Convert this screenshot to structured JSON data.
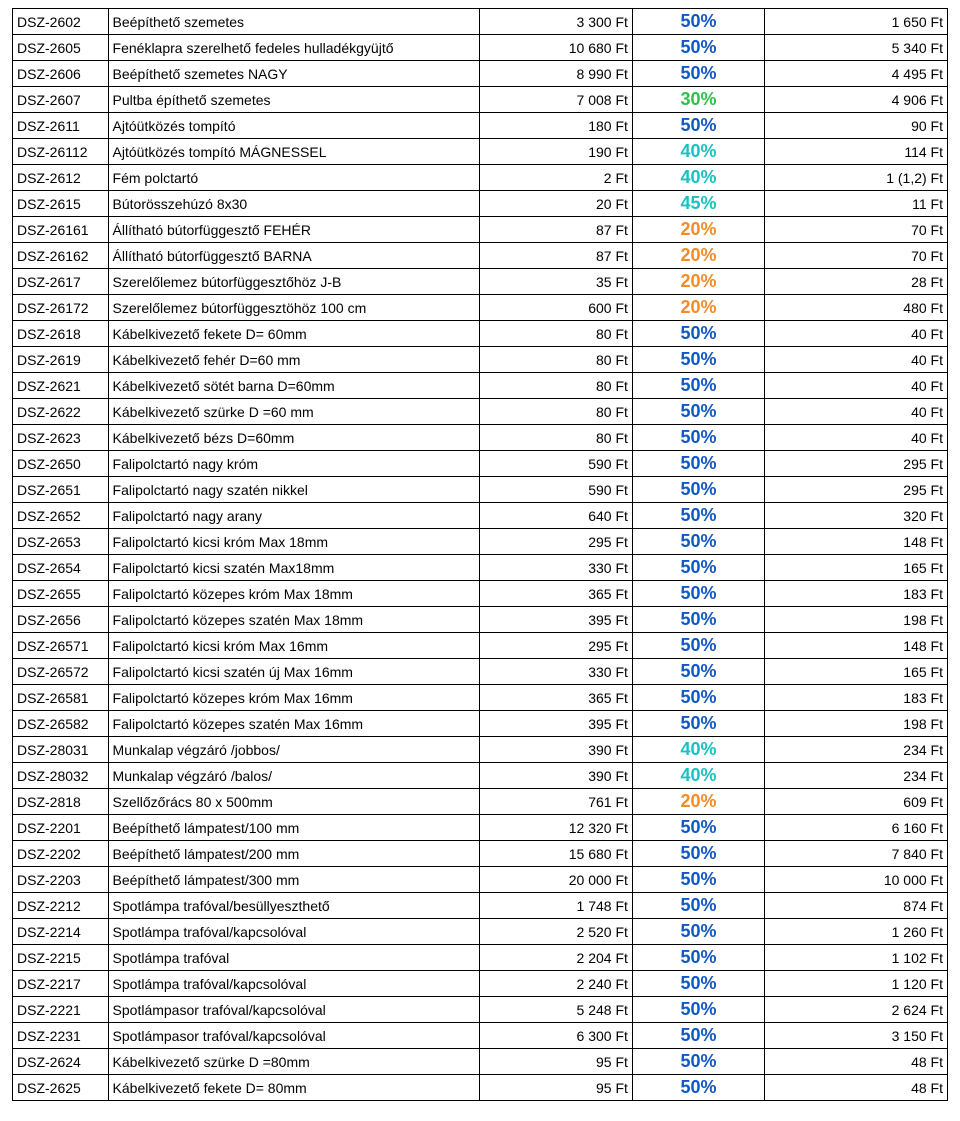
{
  "table": {
    "colors": {
      "text": "#000000",
      "pct_50": "#1058c2",
      "pct_30": "#2ec24a",
      "pct_40": "#19c2c2",
      "pct_45": "#19c2c2",
      "pct_20": "#f28c28"
    },
    "rows": [
      {
        "code": "DSZ-2602",
        "desc": "Beépíthető szemetes",
        "price": "3 300 Ft",
        "pct": "50%",
        "pct_color": "#1058c2",
        "final": "1 650 Ft"
      },
      {
        "code": "DSZ-2605",
        "desc": "Fenéklapra szerelhető fedeles hulladékgyüjtő",
        "price": "10 680 Ft",
        "pct": "50%",
        "pct_color": "#1058c2",
        "final": "5 340 Ft"
      },
      {
        "code": "DSZ-2606",
        "desc": "Beépíthető szemetes NAGY",
        "price": "8 990 Ft",
        "pct": "50%",
        "pct_color": "#1058c2",
        "final": "4 495 Ft"
      },
      {
        "code": "DSZ-2607",
        "desc": "Pultba építhető szemetes",
        "price": "7 008 Ft",
        "pct": "30%",
        "pct_color": "#2ec24a",
        "final": "4 906 Ft"
      },
      {
        "code": "DSZ-2611",
        "desc": "Ajtóütközés tompító",
        "price": "180 Ft",
        "pct": "50%",
        "pct_color": "#1058c2",
        "final": "90 Ft"
      },
      {
        "code": "DSZ-26112",
        "desc": "Ajtóütközés tompító MÁGNESSEL",
        "price": "190 Ft",
        "pct": "40%",
        "pct_color": "#19c2c2",
        "final": "114 Ft"
      },
      {
        "code": "DSZ-2612",
        "desc": "Fém polctartó",
        "price": "2 Ft",
        "pct": "40%",
        "pct_color": "#19c2c2",
        "final": "1 (1,2) Ft"
      },
      {
        "code": "DSZ-2615",
        "desc": "Bútorösszehúzó 8x30",
        "price": "20 Ft",
        "pct": "45%",
        "pct_color": "#19c2c2",
        "final": "11 Ft"
      },
      {
        "code": "DSZ-26161",
        "desc": "Állítható bútorfüggesztő FEHÉR",
        "price": "87 Ft",
        "pct": "20%",
        "pct_color": "#f28c28",
        "final": "70 Ft"
      },
      {
        "code": "DSZ-26162",
        "desc": "Állítható bútorfüggesztő BARNA",
        "price": "87 Ft",
        "pct": "20%",
        "pct_color": "#f28c28",
        "final": "70 Ft"
      },
      {
        "code": "DSZ-2617",
        "desc": "Szerelőlemez bútorfüggesztőhöz J-B",
        "price": "35 Ft",
        "pct": "20%",
        "pct_color": "#f28c28",
        "final": "28 Ft"
      },
      {
        "code": "DSZ-26172",
        "desc": "Szerelőlemez bútorfüggesztöhöz 100 cm",
        "price": "600 Ft",
        "pct": "20%",
        "pct_color": "#f28c28",
        "final": "480 Ft"
      },
      {
        "code": "DSZ-2618",
        "desc": "Kábelkivezető fekete D= 60mm",
        "price": "80 Ft",
        "pct": "50%",
        "pct_color": "#1058c2",
        "final": "40 Ft"
      },
      {
        "code": "DSZ-2619",
        "desc": "Kábelkivezető fehér D=60 mm",
        "price": "80 Ft",
        "pct": "50%",
        "pct_color": "#1058c2",
        "final": "40 Ft"
      },
      {
        "code": "DSZ-2621",
        "desc": "Kábelkivezető sötét barna D=60mm",
        "price": "80 Ft",
        "pct": "50%",
        "pct_color": "#1058c2",
        "final": "40 Ft"
      },
      {
        "code": "DSZ-2622",
        "desc": "Kábelkivezető szürke D =60 mm",
        "price": "80 Ft",
        "pct": "50%",
        "pct_color": "#1058c2",
        "final": "40 Ft"
      },
      {
        "code": "DSZ-2623",
        "desc": "Kábelkivezető bézs D=60mm",
        "price": "80 Ft",
        "pct": "50%",
        "pct_color": "#1058c2",
        "final": "40 Ft"
      },
      {
        "code": "DSZ-2650",
        "desc": "Falipolctartó nagy króm",
        "price": "590 Ft",
        "pct": "50%",
        "pct_color": "#1058c2",
        "final": "295 Ft"
      },
      {
        "code": "DSZ-2651",
        "desc": "Falipolctartó nagy szatén nikkel",
        "price": "590 Ft",
        "pct": "50%",
        "pct_color": "#1058c2",
        "final": "295 Ft"
      },
      {
        "code": "DSZ-2652",
        "desc": "Falipolctartó nagy arany",
        "price": "640 Ft",
        "pct": "50%",
        "pct_color": "#1058c2",
        "final": "320 Ft"
      },
      {
        "code": "DSZ-2653",
        "desc": "Falipolctartó kicsi króm  Max 18mm",
        "price": "295 Ft",
        "pct": "50%",
        "pct_color": "#1058c2",
        "final": "148 Ft"
      },
      {
        "code": "DSZ-2654",
        "desc": "Falipolctartó kicsi szatén Max18mm",
        "price": "330 Ft",
        "pct": "50%",
        "pct_color": "#1058c2",
        "final": "165 Ft"
      },
      {
        "code": "DSZ-2655",
        "desc": "Falipolctartó közepes króm Max 18mm",
        "price": "365 Ft",
        "pct": "50%",
        "pct_color": "#1058c2",
        "final": "183 Ft"
      },
      {
        "code": "DSZ-2656",
        "desc": "Falipolctartó közepes szatén Max 18mm",
        "price": "395 Ft",
        "pct": "50%",
        "pct_color": "#1058c2",
        "final": "198 Ft"
      },
      {
        "code": "DSZ-26571",
        "desc": "Falipolctartó kicsi króm Max 16mm",
        "price": "295 Ft",
        "pct": "50%",
        "pct_color": "#1058c2",
        "final": "148 Ft"
      },
      {
        "code": "DSZ-26572",
        "desc": "Falipolctartó kicsi szatén új Max 16mm",
        "price": "330 Ft",
        "pct": "50%",
        "pct_color": "#1058c2",
        "final": "165 Ft"
      },
      {
        "code": "DSZ-26581",
        "desc": "Falipolctartó közepes króm Max 16mm",
        "price": "365 Ft",
        "pct": "50%",
        "pct_color": "#1058c2",
        "final": "183 Ft"
      },
      {
        "code": "DSZ-26582",
        "desc": "Falipolctartó közepes szatén Max 16mm",
        "price": "395 Ft",
        "pct": "50%",
        "pct_color": "#1058c2",
        "final": "198 Ft"
      },
      {
        "code": "DSZ-28031",
        "desc": "Munkalap végzáró /jobbos/",
        "price": "390 Ft",
        "pct": "40%",
        "pct_color": "#19c2c2",
        "final": "234 Ft"
      },
      {
        "code": "DSZ-28032",
        "desc": "Munkalap végzáró /balos/",
        "price": "390 Ft",
        "pct": "40%",
        "pct_color": "#19c2c2",
        "final": "234 Ft"
      },
      {
        "code": "DSZ-2818",
        "desc": "Szellőzőrács 80 x 500mm",
        "price": "761 Ft",
        "pct": "20%",
        "pct_color": "#f28c28",
        "final": "609 Ft"
      },
      {
        "code": "DSZ-2201",
        "desc": "Beépíthető lámpatest/100 mm",
        "price": "12 320 Ft",
        "pct": "50%",
        "pct_color": "#1058c2",
        "final": "6 160 Ft"
      },
      {
        "code": "DSZ-2202",
        "desc": "Beépíthető lámpatest/200 mm",
        "price": "15 680 Ft",
        "pct": "50%",
        "pct_color": "#1058c2",
        "final": "7 840 Ft"
      },
      {
        "code": "DSZ-2203",
        "desc": "Beépíthető lámpatest/300 mm",
        "price": "20 000 Ft",
        "pct": "50%",
        "pct_color": "#1058c2",
        "final": "10 000 Ft"
      },
      {
        "code": "DSZ-2212",
        "desc": "Spotlámpa trafóval/besüllyeszthető",
        "price": "1 748 Ft",
        "pct": "50%",
        "pct_color": "#1058c2",
        "final": "874 Ft"
      },
      {
        "code": "DSZ-2214",
        "desc": "Spotlámpa trafóval/kapcsolóval",
        "price": "2 520 Ft",
        "pct": "50%",
        "pct_color": "#1058c2",
        "final": "1 260 Ft"
      },
      {
        "code": "DSZ-2215",
        "desc": "Spotlámpa trafóval",
        "price": "2 204 Ft",
        "pct": "50%",
        "pct_color": "#1058c2",
        "final": "1 102 Ft"
      },
      {
        "code": "DSZ-2217",
        "desc": "Spotlámpa trafóval/kapcsolóval",
        "price": "2 240 Ft",
        "pct": "50%",
        "pct_color": "#1058c2",
        "final": "1 120 Ft"
      },
      {
        "code": "DSZ-2221",
        "desc": "Spotlámpasor trafóval/kapcsolóval",
        "price": "5 248 Ft",
        "pct": "50%",
        "pct_color": "#1058c2",
        "final": "2 624 Ft"
      },
      {
        "code": "DSZ-2231",
        "desc": "Spotlámpasor trafóval/kapcsolóval",
        "price": "6 300 Ft",
        "pct": "50%",
        "pct_color": "#1058c2",
        "final": "3 150 Ft"
      },
      {
        "code": "DSZ-2624",
        "desc": "Kábelkivezető szürke D =80mm",
        "price": "95 Ft",
        "pct": "50%",
        "pct_color": "#1058c2",
        "final": "48 Ft"
      },
      {
        "code": "DSZ-2625",
        "desc": "Kábelkivezető fekete D= 80mm",
        "price": "95 Ft",
        "pct": "50%",
        "pct_color": "#1058c2",
        "final": "48 Ft"
      }
    ]
  }
}
